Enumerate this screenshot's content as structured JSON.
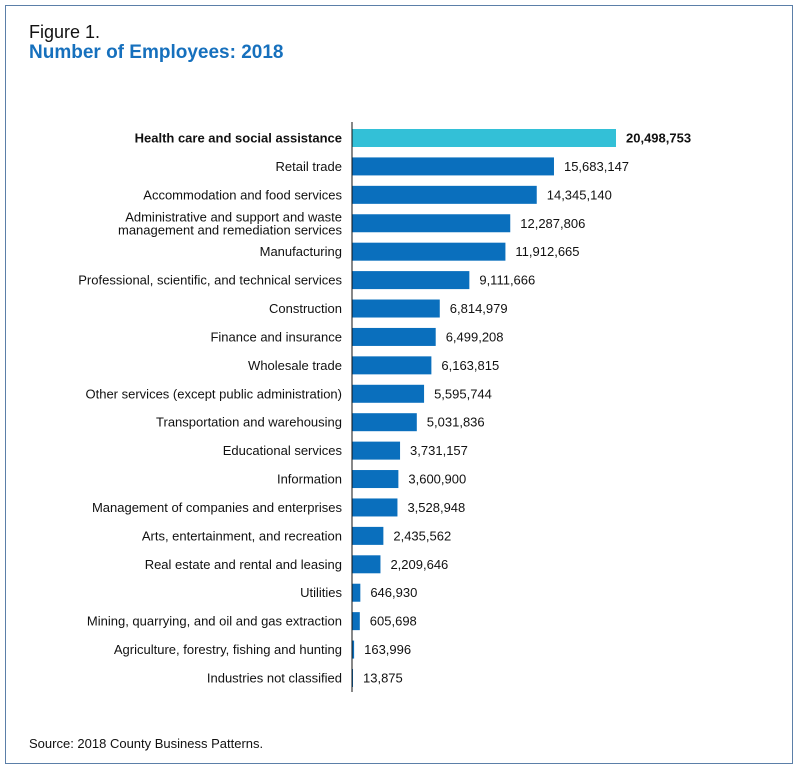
{
  "figure_label": "Figure 1.",
  "source": "Source: 2018 County Business Patterns.",
  "colors": {
    "highlight": "#33c0d7",
    "bar": "#0a6fbd",
    "title": "#1670bd"
  },
  "chart_data": {
    "type": "bar",
    "orientation": "horizontal",
    "title": "Number of Employees: 2018",
    "xlabel": "",
    "ylabel": "",
    "grid": false,
    "highlighted_category": "Health care and social assistance",
    "categories": [
      "Health care and social assistance",
      "Retail trade",
      "Accommodation and food services",
      "Administrative and support and waste management and remediation services",
      "Manufacturing",
      "Professional, scientific, and technical services",
      "Construction",
      "Finance and insurance",
      "Wholesale trade",
      "Other services (except public administration)",
      "Transportation and warehousing",
      "Educational services",
      "Information",
      "Management of companies and enterprises",
      "Arts, entertainment, and recreation",
      "Real estate and rental and leasing",
      "Utilities",
      "Mining, quarrying, and oil and gas extraction",
      "Agriculture, forestry, fishing and hunting",
      "Industries not classified"
    ],
    "values": [
      20498753,
      15683147,
      14345140,
      12287806,
      11912665,
      9111666,
      6814979,
      6499208,
      6163815,
      5595744,
      5031836,
      3731157,
      3600900,
      3528948,
      2435562,
      2209646,
      646930,
      605698,
      163996,
      13875
    ],
    "value_labels": [
      "20,498,753",
      "15,683,147",
      "14,345,140",
      "12,287,806",
      "11,912,665",
      "9,111,666",
      "6,814,979",
      "6,499,208",
      "6,163,815",
      "5,595,744",
      "5,031,836",
      "3,731,157",
      "3,600,900",
      "3,528,948",
      "2,435,562",
      "2,209,646",
      "646,930",
      "605,698",
      "163,996",
      "13,875"
    ]
  }
}
